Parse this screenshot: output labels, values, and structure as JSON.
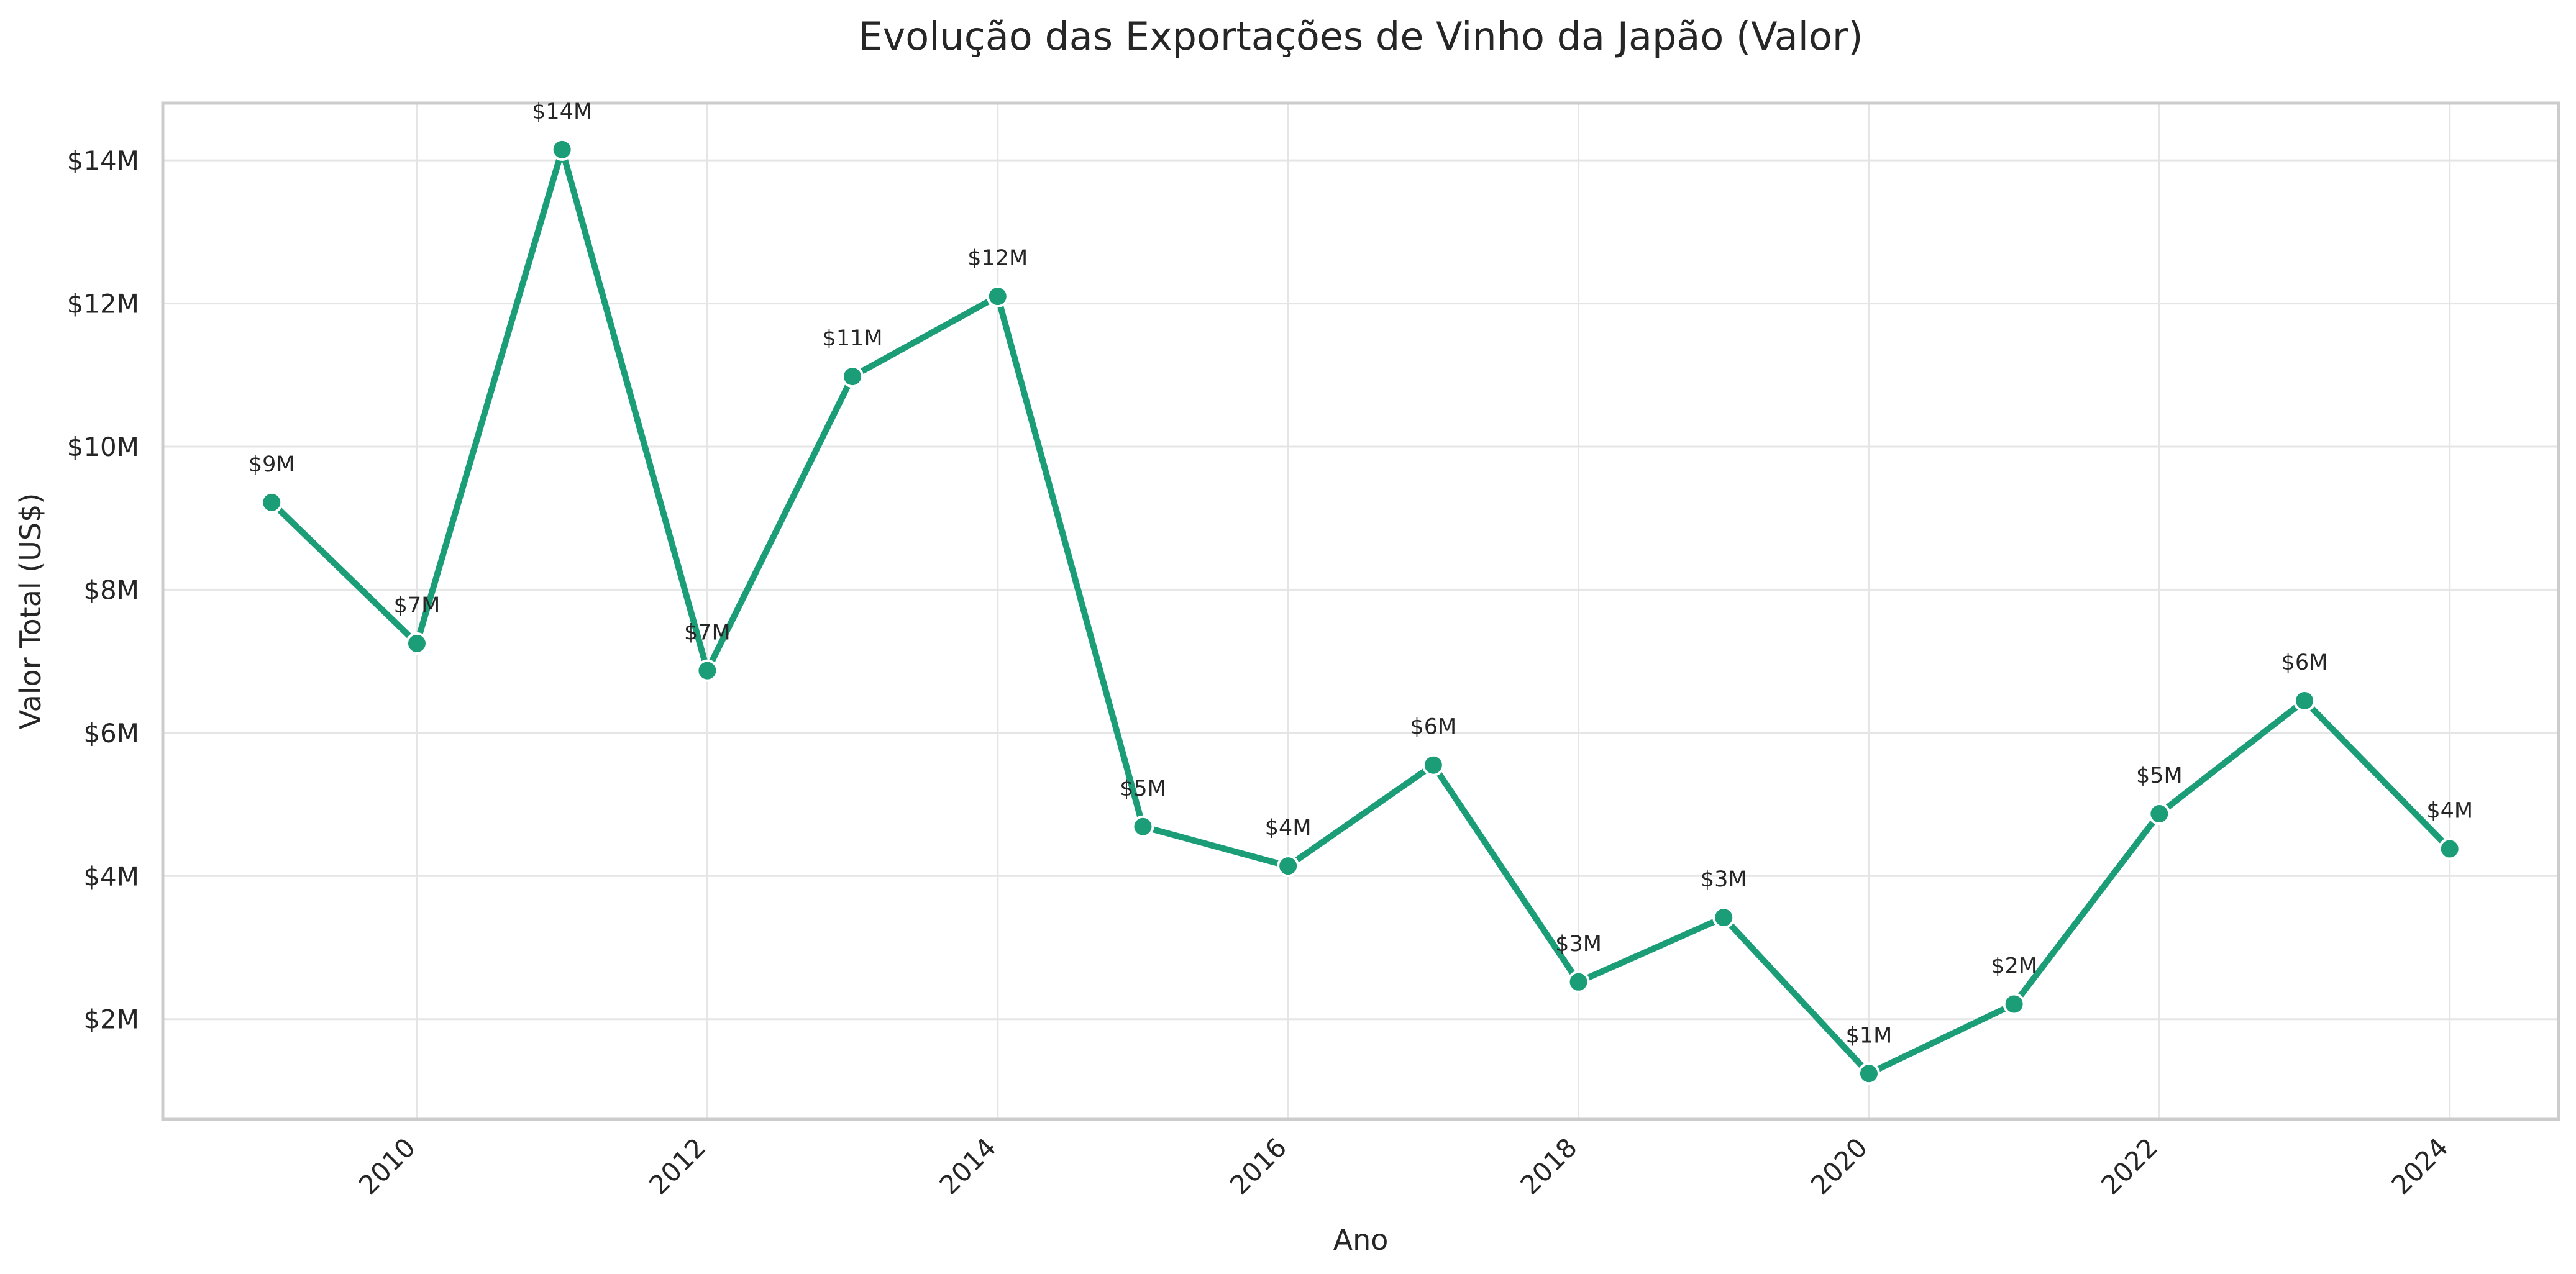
{
  "chart_data": {
    "type": "line",
    "title": "Evolução das Exportações de Vinho da Japão (Valor)",
    "xlabel": "Ano",
    "ylabel": "Valor Total (US$)",
    "x": [
      2009,
      2010,
      2011,
      2012,
      2013,
      2014,
      2015,
      2016,
      2017,
      2018,
      2019,
      2020,
      2021,
      2022,
      2023,
      2024
    ],
    "values": [
      9.22,
      7.25,
      14.15,
      6.87,
      10.98,
      12.1,
      4.69,
      4.14,
      5.55,
      2.52,
      3.42,
      1.24,
      2.21,
      4.87,
      6.45,
      4.38
    ],
    "value_unit": "M",
    "data_labels": [
      "$9M",
      "$7M",
      "$14M",
      "$7M",
      "$11M",
      "$12M",
      "$5M",
      "$4M",
      "$6M",
      "$3M",
      "$3M",
      "$1M",
      "$2M",
      "$5M",
      "$6M",
      "$4M"
    ],
    "xticks": [
      2010,
      2012,
      2014,
      2016,
      2018,
      2020,
      2022,
      2024
    ],
    "xtick_labels": [
      "2010",
      "2012",
      "2014",
      "2016",
      "2018",
      "2020",
      "2022",
      "2024"
    ],
    "yticks": [
      2,
      4,
      6,
      8,
      10,
      12,
      14
    ],
    "ytick_labels": [
      "$2M",
      "$4M",
      "$6M",
      "$8M",
      "$10M",
      "$12M",
      "$14M"
    ],
    "xlim": [
      2008.25,
      2024.75
    ],
    "ylim": [
      0.6,
      14.8
    ],
    "grid": true,
    "color": "#1b9e77"
  }
}
